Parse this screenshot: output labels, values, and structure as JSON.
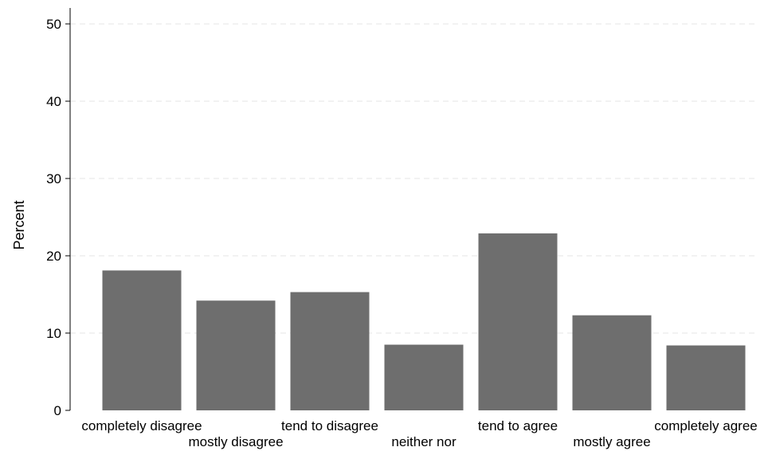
{
  "chart_data": {
    "type": "bar",
    "title": "",
    "xlabel": "",
    "ylabel": "Percent",
    "ylim": [
      0,
      52
    ],
    "yticks": [
      0,
      10,
      20,
      30,
      40,
      50
    ],
    "grid": true,
    "legend": "none",
    "bar_color": "#6e6e6e",
    "categories": [
      "completely disagree",
      "mostly disagree",
      "tend to disagree",
      "neither nor",
      "tend to agree",
      "mostly agree",
      "completely agree"
    ],
    "values": [
      18.1,
      14.2,
      15.3,
      8.5,
      22.9,
      12.3,
      8.4
    ]
  }
}
